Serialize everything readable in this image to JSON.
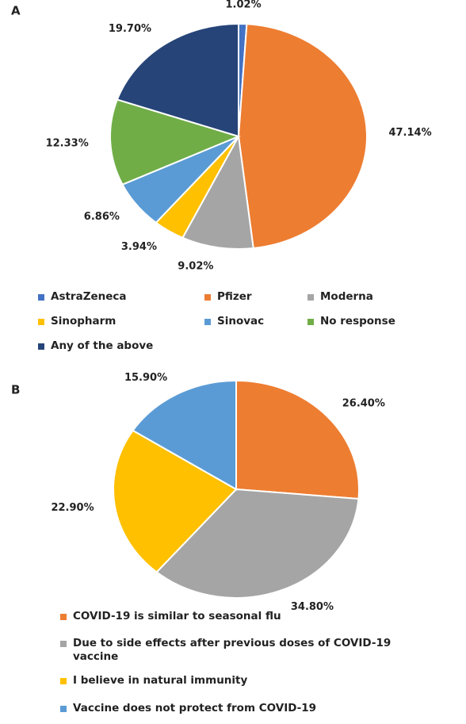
{
  "chart_data": [
    {
      "type": "pie",
      "title": "A",
      "categories": [
        "AstraZeneca",
        "Pfizer",
        "Moderna",
        "Sinopharm",
        "Sinovac",
        "No response",
        "Any of the above"
      ],
      "values": [
        1.02,
        47.14,
        9.02,
        3.94,
        6.86,
        12.33,
        19.7
      ],
      "value_labels": [
        "1.02%",
        "47.14%",
        "9.02%",
        "3.94%",
        "6.86%",
        "12.33%",
        "19.70%"
      ],
      "colors": [
        "#4472c4",
        "#ed7d31",
        "#a5a5a5",
        "#ffc000",
        "#5b9bd5",
        "#70ad47",
        "#264478"
      ],
      "legend": "bottom"
    },
    {
      "type": "pie",
      "title": "B",
      "categories": [
        "COVID-19 is similar to seasonal flu",
        "Due to side effects after previous doses of COVID-19 vaccine",
        "I believe in natural immunity",
        "Vaccine does not protect from COVID-19"
      ],
      "values": [
        26.4,
        34.8,
        22.9,
        15.9
      ],
      "value_labels": [
        "26.40%",
        "34.80%",
        "22.90%",
        "15.90%"
      ],
      "colors": [
        "#ed7d31",
        "#a5a5a5",
        "#ffc000",
        "#5b9bd5"
      ],
      "legend": "bottom"
    }
  ]
}
